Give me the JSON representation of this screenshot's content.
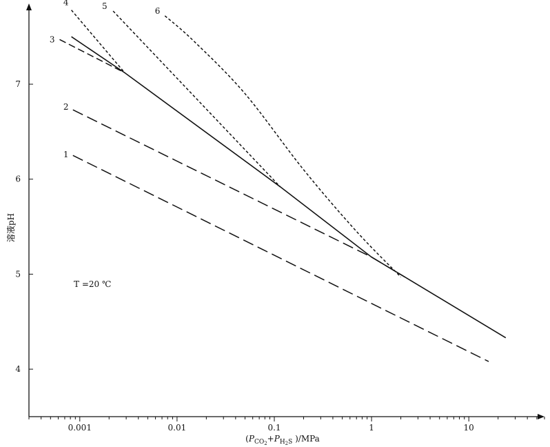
{
  "chart_data": {
    "type": "line",
    "title": "",
    "xlabel": "(P_CO2+P_H2S)/MPa",
    "ylabel": "溶液pH",
    "x_scale": "log",
    "xlim": [
      0.0003,
      60
    ],
    "ylim": [
      3.5,
      7.85
    ],
    "x_ticks": [
      {
        "value": 0.001,
        "label": "0.001"
      },
      {
        "value": 0.01,
        "label": "0.01"
      },
      {
        "value": 0.1,
        "label": "0.1"
      },
      {
        "value": 1,
        "label": "1"
      },
      {
        "value": 10,
        "label": "10"
      }
    ],
    "y_ticks": [
      {
        "value": 4,
        "label": "4"
      },
      {
        "value": 5,
        "label": "5"
      },
      {
        "value": 6,
        "label": "6"
      },
      {
        "value": 7,
        "label": "7"
      }
    ],
    "annotation": "T =20 ℃",
    "grid": false,
    "series": [
      {
        "name": "1",
        "style": "long-dash",
        "x": [
          0.00085,
          16
        ],
        "y": [
          6.25,
          4.08
        ]
      },
      {
        "name": "2",
        "style": "long-dash",
        "x": [
          0.00085,
          1.0,
          2.2
        ],
        "y": [
          6.73,
          5.18,
          4.97
        ]
      },
      {
        "name": "3",
        "style": "dash",
        "x": [
          0.00062,
          0.0029
        ],
        "y": [
          7.47,
          7.12
        ]
      },
      {
        "name": "4",
        "style": "short-dash",
        "x": [
          0.00082,
          0.0029
        ],
        "y": [
          7.78,
          7.12
        ]
      },
      {
        "name": "5",
        "style": "short-dash",
        "x": [
          0.0022,
          0.115
        ],
        "y": [
          7.77,
          5.92
        ]
      },
      {
        "name": "6",
        "style": "short-dash",
        "x": [
          0.0075,
          0.015,
          0.05,
          0.2,
          0.7,
          2.0
        ],
        "y": [
          7.72,
          7.45,
          6.9,
          6.1,
          5.45,
          4.97
        ]
      },
      {
        "name": "",
        "style": "solid",
        "x": [
          0.00082,
          0.0029,
          0.115,
          1.0,
          2.2,
          24
        ],
        "y": [
          7.5,
          7.12,
          5.92,
          5.18,
          4.97,
          4.33
        ]
      }
    ],
    "curve_labels": [
      {
        "text": "1",
        "x": 0.00072,
        "y": 6.26
      },
      {
        "text": "2",
        "x": 0.00072,
        "y": 6.76
      },
      {
        "text": "3",
        "x": 0.00052,
        "y": 7.47
      },
      {
        "text": "4",
        "x": 0.00072,
        "y": 7.86
      },
      {
        "text": "5",
        "x": 0.0018,
        "y": 7.82
      },
      {
        "text": "6",
        "x": 0.0063,
        "y": 7.77
      }
    ]
  }
}
